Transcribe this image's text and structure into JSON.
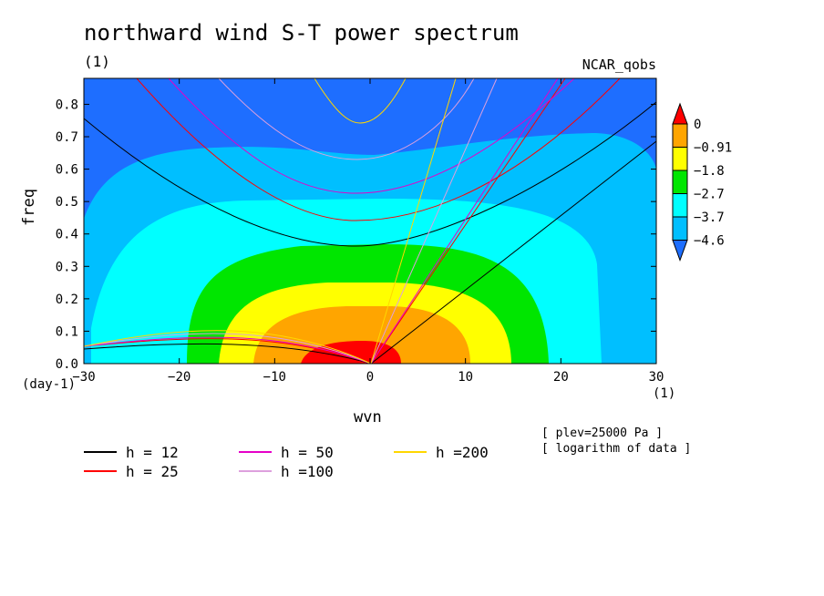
{
  "header": {
    "title": "northward wind S-T power spectrum",
    "subtitle": "(1)",
    "model": "NCAR_qobs"
  },
  "axes": {
    "xlabel": "wvn",
    "ylabel": "freq",
    "y_unit": "(day-1)",
    "x_unit": "(1)"
  },
  "notes": [
    "[ plev=25000 Pa ]",
    "[ logarithm of data ]"
  ],
  "colorbar": {
    "labels": [
      "0",
      "−0.91",
      "−1.8",
      "−2.7",
      "−3.7",
      "−4.6"
    ],
    "colors": [
      "#ff0000",
      "#ffa500",
      "#ffff00",
      "#00e600",
      "#00ffff",
      "#00bfff",
      "#1e6eff"
    ]
  },
  "legend": [
    {
      "label": "h = 12",
      "color": "#000000"
    },
    {
      "label": "h = 25",
      "color": "#ff0000"
    },
    {
      "label": "h = 50",
      "color": "#e600c8"
    },
    {
      "label": "h =100",
      "color": "#dda0dd"
    },
    {
      "label": "h =200",
      "color": "#ffd700"
    }
  ],
  "chart_data": {
    "type": "heatmap",
    "title": "northward wind S-T power spectrum",
    "xlabel": "wvn",
    "ylabel": "freq",
    "xlim": [
      -30,
      30
    ],
    "ylim": [
      0,
      0.88
    ],
    "xticks": [
      -30,
      -20,
      -10,
      0,
      10,
      20,
      30
    ],
    "yticks": [
      0.0,
      0.1,
      0.2,
      0.3,
      0.4,
      0.5,
      0.6,
      0.7,
      0.8
    ],
    "contour_levels": [
      0,
      -0.91,
      -1.8,
      -2.7,
      -3.7,
      -4.6
    ],
    "dispersion_curves": [
      {
        "name": "h = 12",
        "equivalent_depth": 12
      },
      {
        "name": "h = 25",
        "equivalent_depth": 25
      },
      {
        "name": "h = 50",
        "equivalent_depth": 50
      },
      {
        "name": "h =100",
        "equivalent_depth": 100
      },
      {
        "name": "h =200",
        "equivalent_depth": 200
      }
    ],
    "field_peak": {
      "wvn": 0,
      "freq": 0.0,
      "value": 0
    },
    "grid": false,
    "legend_position": "bottom-left"
  }
}
